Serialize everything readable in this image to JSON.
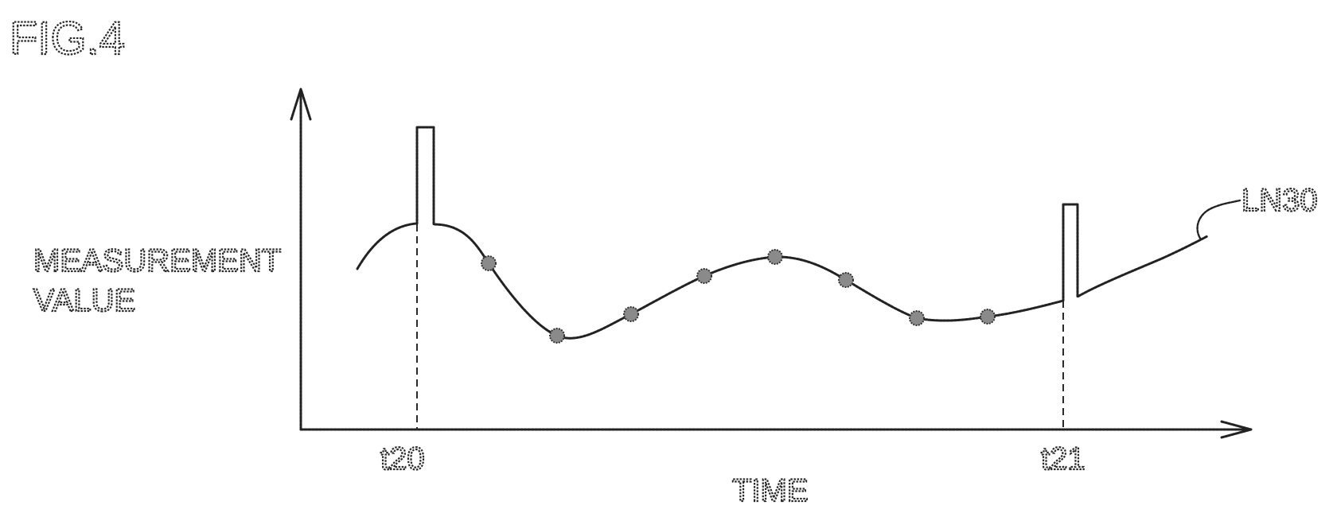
{
  "figure": {
    "title": "FIG.4"
  },
  "axes": {
    "y_label_line1": "MEASUREMENT",
    "y_label_line2": "VALUE",
    "x_label": "TIME",
    "tick_t20": "t20",
    "tick_t21": "t21"
  },
  "curve": {
    "name": "LN30"
  },
  "colors": {
    "ink": "#222222",
    "marker_fill": "#8a8a8a",
    "background": "#ffffff"
  }
}
